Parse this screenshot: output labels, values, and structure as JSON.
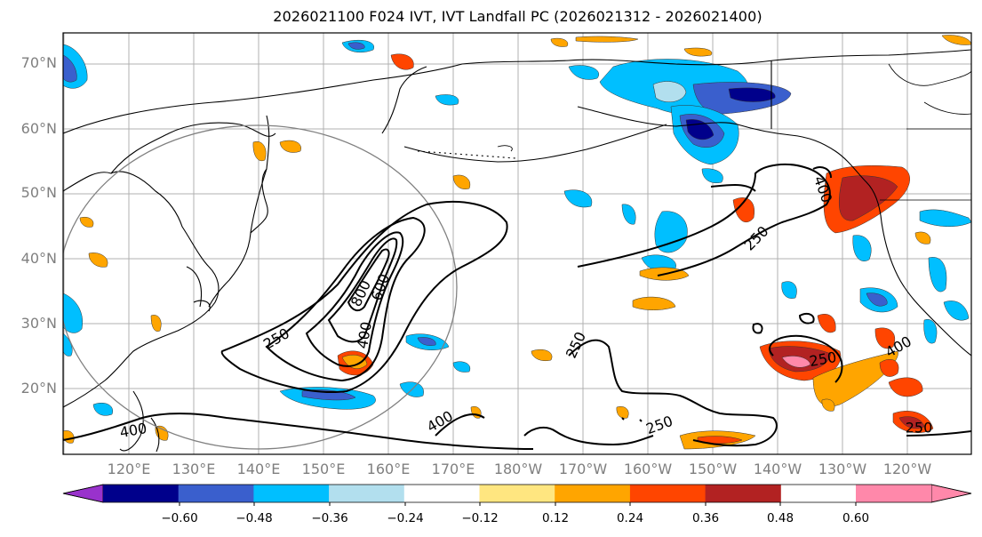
{
  "title": "2026021100 F024 IVT, IVT Landfall PC (2026021312 - 2026021400)",
  "lat_labels": [
    "70°N",
    "60°N",
    "50°N",
    "40°N",
    "30°N",
    "20°N"
  ],
  "lon_labels": [
    "120°E",
    "130°E",
    "140°E",
    "150°E",
    "160°E",
    "170°E",
    "180°W",
    "170°W",
    "160°W",
    "150°W",
    "140°W",
    "130°W",
    "120°W"
  ],
  "colorbar": {
    "ticks": [
      "−0.60",
      "−0.48",
      "−0.36",
      "−0.24",
      "−0.12",
      "0.12",
      "0.24",
      "0.36",
      "0.48",
      "0.60"
    ],
    "colors": [
      "#9932cc",
      "#00008b",
      "#3a5fcd",
      "#00bfff",
      "#b2dfee",
      "#ffffff",
      "#ffe680",
      "#ffa500",
      "#ff4500",
      "#b22222",
      "#ff88aa"
    ]
  },
  "contour_labels": [
    "250",
    "250",
    "250",
    "250",
    "250",
    "250",
    "400",
    "400",
    "400",
    "400",
    "400",
    "600",
    "800"
  ],
  "colors": {
    "grid": "#b0b0b0",
    "coast": "#000000",
    "contour": "#000000",
    "circle": "#808080",
    "axis_text": "#7f7f7f"
  }
}
